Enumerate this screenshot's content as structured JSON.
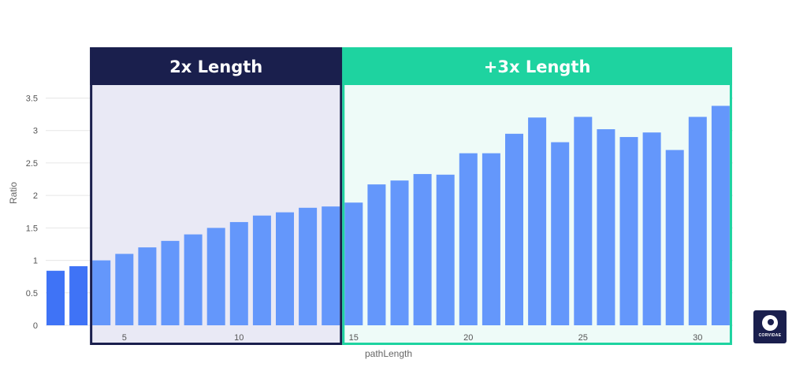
{
  "chart_data": {
    "type": "bar",
    "xlabel": "pathLength",
    "ylabel": "Ratio",
    "ylim": [
      0,
      3.5
    ],
    "yticks": [
      0,
      0.5,
      1,
      1.5,
      2,
      2.5,
      3,
      3.5
    ],
    "xticks": [
      5,
      10,
      15,
      20,
      25,
      30
    ],
    "x": [
      2,
      3,
      4,
      5,
      6,
      7,
      8,
      9,
      10,
      11,
      12,
      13,
      14,
      15,
      16,
      17,
      18,
      19,
      20,
      21,
      22,
      23,
      24,
      25,
      26,
      27,
      28,
      29,
      30,
      31
    ],
    "values": [
      0.84,
      0.91,
      1.0,
      1.1,
      1.2,
      1.3,
      1.4,
      1.5,
      1.59,
      1.69,
      1.74,
      1.81,
      1.83,
      1.89,
      2.17,
      2.23,
      2.33,
      2.32,
      2.65,
      2.65,
      2.95,
      3.2,
      2.82,
      3.21,
      3.02,
      2.9,
      2.97,
      2.7,
      3.21,
      3.38
    ],
    "grid": true,
    "regions": [
      {
        "title": "2x Length",
        "from_x": 4,
        "to_x": 14,
        "color": "#1a1f4d",
        "fill": "#e9e9f5"
      },
      {
        "title": "+3x Length",
        "from_x": 15,
        "to_x": 31,
        "color": "#1ed3a0",
        "fill": "#eefbf8"
      }
    ],
    "colors": {
      "bar": "#6497fb",
      "bar_outside": "#3f73f6",
      "grid": "#e6e6e6"
    }
  },
  "logo": {
    "brand": "CORVIDAE",
    "icon": "bird-logo-icon"
  }
}
